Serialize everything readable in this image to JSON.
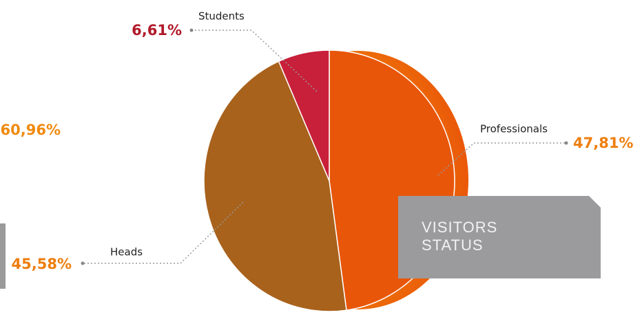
{
  "chart_data": {
    "type": "pie",
    "title": "VISITORS STATUS",
    "categories": [
      "Professionals",
      "Heads",
      "Students"
    ],
    "values": [
      47.81,
      45.58,
      6.61
    ],
    "value_labels": [
      "47,81%",
      "45,58%",
      "6,61%"
    ],
    "colors": [
      "#e8560a",
      "#a8621c",
      "#c8203a"
    ],
    "annotation": "60,96%"
  }
}
